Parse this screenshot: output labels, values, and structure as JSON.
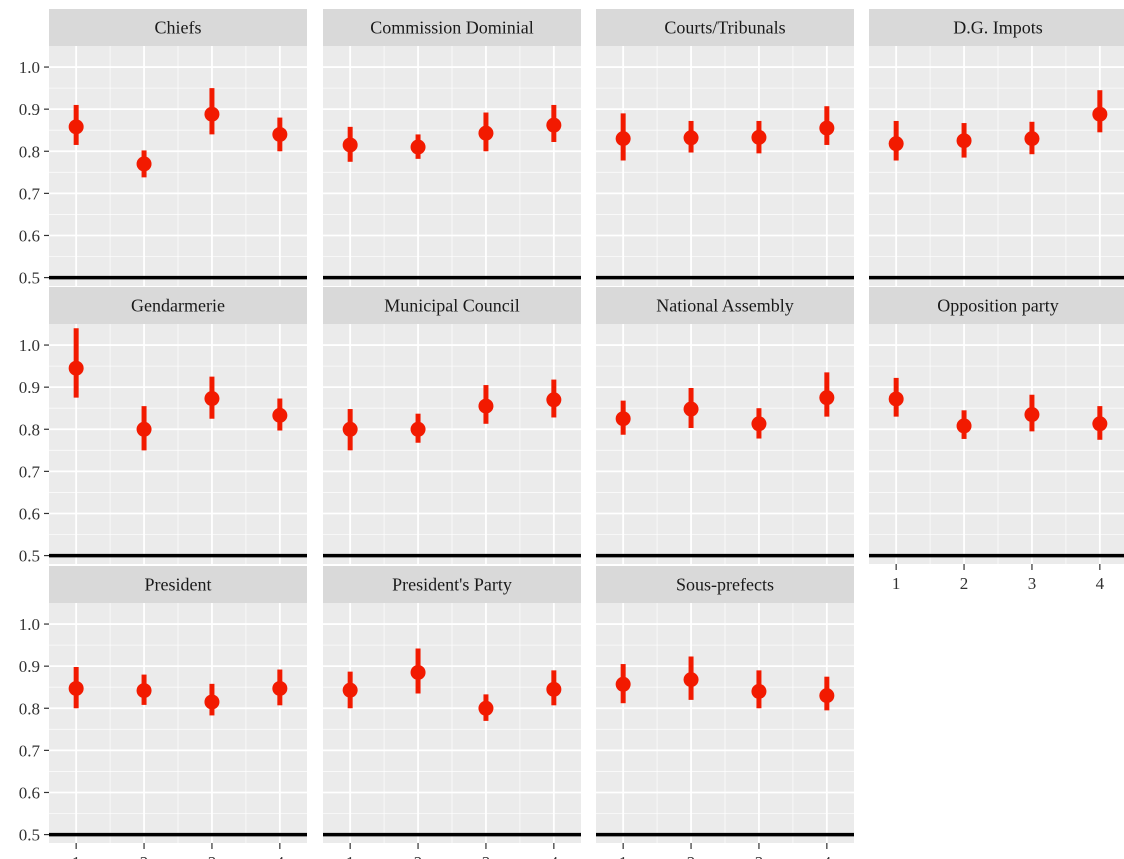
{
  "chart_data": {
    "type": "scatter",
    "style": "faceted point estimates with error bars, ggplot2 grey theme",
    "colors": {
      "points": "#f21a00",
      "panel_background": "#ebebeb",
      "strip_background": "#d9d9d9",
      "grid": "#ffffff",
      "reference_line": "#000000",
      "text": "#333333"
    },
    "x_ticks": [
      "1",
      "2",
      "3",
      "4"
    ],
    "y_ticks": [
      "0.5",
      "0.6",
      "0.7",
      "0.8",
      "0.9",
      "1.0"
    ],
    "ylim": [
      0.48,
      1.05
    ],
    "reference_line_y": 0.5,
    "grid": true,
    "panels": [
      {
        "title": "Chiefs",
        "x": [
          1,
          2,
          3,
          4
        ],
        "y": [
          0.858,
          0.77,
          0.888,
          0.84
        ],
        "ymin": [
          0.815,
          0.738,
          0.84,
          0.8
        ],
        "ymax": [
          0.91,
          0.802,
          0.95,
          0.88
        ]
      },
      {
        "title": "Commission Dominial",
        "x": [
          1,
          2,
          3,
          4
        ],
        "y": [
          0.815,
          0.81,
          0.843,
          0.862
        ],
        "ymin": [
          0.775,
          0.782,
          0.8,
          0.822
        ],
        "ymax": [
          0.858,
          0.84,
          0.892,
          0.91
        ]
      },
      {
        "title": "Courts/Tribunals",
        "x": [
          1,
          2,
          3,
          4
        ],
        "y": [
          0.83,
          0.832,
          0.833,
          0.855
        ],
        "ymin": [
          0.778,
          0.797,
          0.795,
          0.815
        ],
        "ymax": [
          0.89,
          0.872,
          0.872,
          0.907
        ]
      },
      {
        "title": "D.G. Impots",
        "x": [
          1,
          2,
          3,
          4
        ],
        "y": [
          0.818,
          0.825,
          0.83,
          0.888
        ],
        "ymin": [
          0.778,
          0.785,
          0.793,
          0.845
        ],
        "ymax": [
          0.872,
          0.867,
          0.87,
          0.945
        ]
      },
      {
        "title": "Gendarmerie",
        "x": [
          1,
          2,
          3,
          4
        ],
        "y": [
          0.945,
          0.8,
          0.873,
          0.833
        ],
        "ymin": [
          0.875,
          0.75,
          0.825,
          0.797
        ],
        "ymax": [
          1.04,
          0.855,
          0.925,
          0.873
        ]
      },
      {
        "title": "Municipal Council",
        "x": [
          1,
          2,
          3,
          4
        ],
        "y": [
          0.8,
          0.8,
          0.855,
          0.87
        ],
        "ymin": [
          0.75,
          0.768,
          0.813,
          0.828
        ],
        "ymax": [
          0.848,
          0.837,
          0.905,
          0.918
        ]
      },
      {
        "title": "National Assembly",
        "x": [
          1,
          2,
          3,
          4
        ],
        "y": [
          0.825,
          0.848,
          0.813,
          0.875
        ],
        "ymin": [
          0.787,
          0.803,
          0.778,
          0.83
        ],
        "ymax": [
          0.868,
          0.898,
          0.85,
          0.935
        ]
      },
      {
        "title": "Opposition party",
        "x": [
          1,
          2,
          3,
          4
        ],
        "y": [
          0.872,
          0.808,
          0.835,
          0.813
        ],
        "ymin": [
          0.83,
          0.777,
          0.795,
          0.775
        ],
        "ymax": [
          0.922,
          0.845,
          0.882,
          0.855
        ]
      },
      {
        "title": "President",
        "x": [
          1,
          2,
          3,
          4
        ],
        "y": [
          0.847,
          0.842,
          0.815,
          0.847
        ],
        "ymin": [
          0.8,
          0.808,
          0.783,
          0.807
        ],
        "ymax": [
          0.898,
          0.88,
          0.858,
          0.892
        ]
      },
      {
        "title": "President's Party",
        "x": [
          1,
          2,
          3,
          4
        ],
        "y": [
          0.843,
          0.885,
          0.8,
          0.845
        ],
        "ymin": [
          0.8,
          0.835,
          0.77,
          0.807
        ],
        "ymax": [
          0.887,
          0.942,
          0.833,
          0.89
        ]
      },
      {
        "title": "Sous-prefects",
        "x": [
          1,
          2,
          3,
          4
        ],
        "y": [
          0.857,
          0.868,
          0.84,
          0.83
        ],
        "ymin": [
          0.812,
          0.82,
          0.8,
          0.795
        ],
        "ymax": [
          0.905,
          0.923,
          0.89,
          0.875
        ]
      }
    ]
  }
}
